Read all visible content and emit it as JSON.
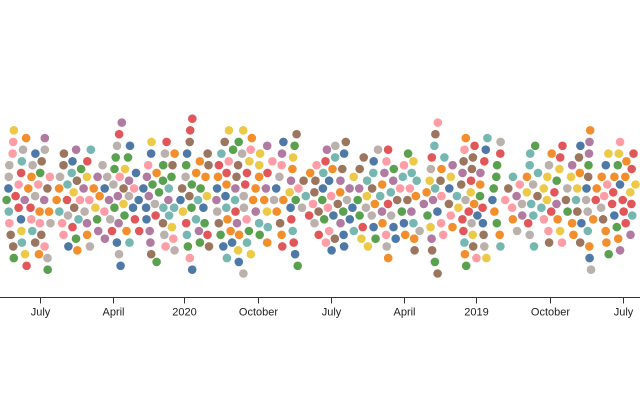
{
  "chart_data": {
    "type": "scatter",
    "description_style": "beeswarm",
    "title": "",
    "xlabel": "",
    "ylabel": "",
    "axis_ticks": [
      {
        "label": "July",
        "date": "2021-07-01"
      },
      {
        "label": "April",
        "date": "2021-04-01"
      },
      {
        "label": "2020",
        "date": "2021-01-01"
      },
      {
        "label": "October",
        "date": "2020-10-01"
      },
      {
        "label": "July",
        "date": "2020-07-01"
      },
      {
        "label": "April",
        "date": "2020-04-01"
      },
      {
        "label": "2019",
        "date": "2020-01-01"
      },
      {
        "label": "October",
        "date": "2019-10-01"
      },
      {
        "label": "July",
        "date": "2019-07-01"
      }
    ],
    "xlim": [
      "2021-08-20",
      "2019-06-10"
    ],
    "grid": false,
    "legend": "none",
    "palette": [
      "#4e79a7",
      "#f28e2b",
      "#e15759",
      "#76b7b2",
      "#59a14f",
      "#edc948",
      "#b07aa1",
      "#ff9da7",
      "#9c755f",
      "#bab0ac"
    ],
    "point_count": 560,
    "random_seed": 7
  }
}
